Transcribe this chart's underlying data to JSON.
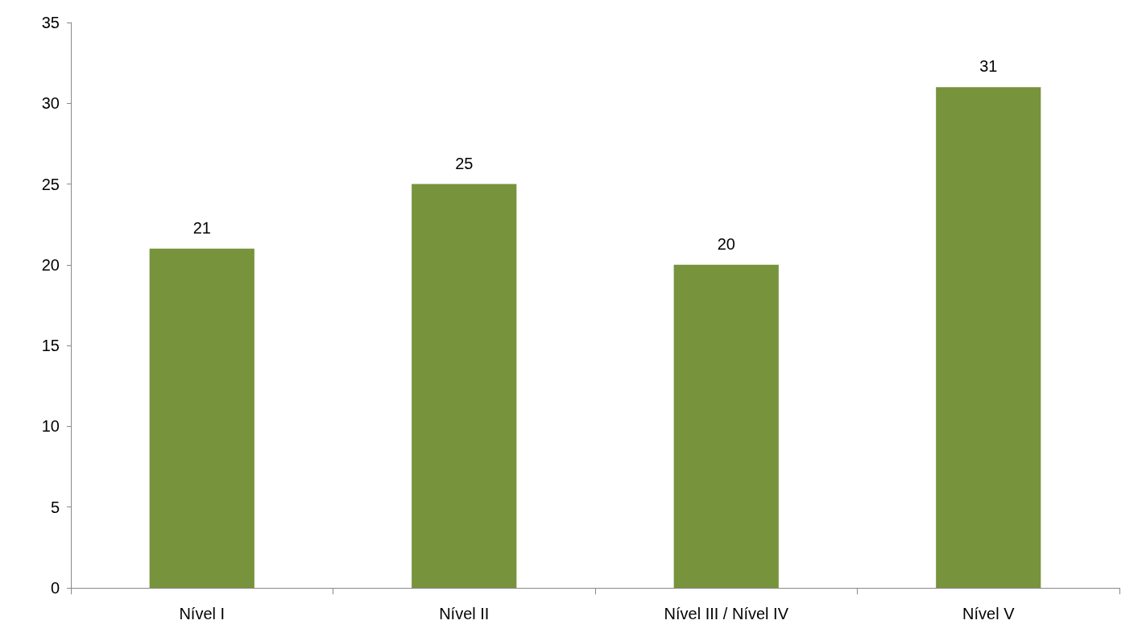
{
  "chart_data": {
    "type": "bar",
    "categories": [
      "Nível I",
      "Nível II",
      "Nível III / Nível IV",
      "Nível V"
    ],
    "values": [
      21,
      25,
      20,
      31
    ],
    "color": "#77933c",
    "ylim": [
      0,
      35
    ],
    "yticks": [
      0,
      5,
      10,
      15,
      20,
      25,
      30,
      35
    ],
    "grid": false,
    "data_labels": true
  }
}
